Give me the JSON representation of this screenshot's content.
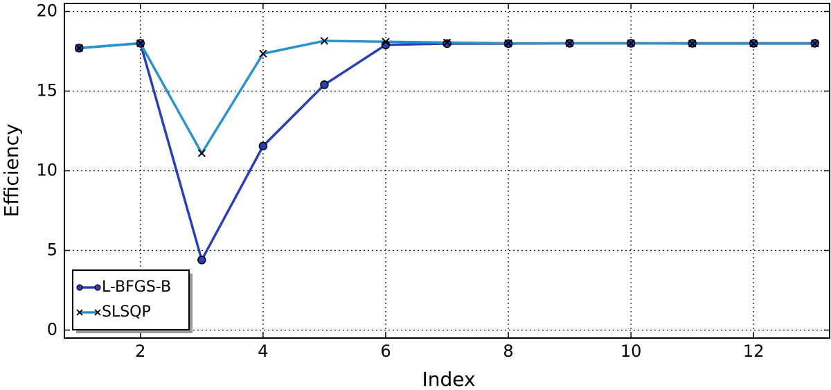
{
  "chart_data": {
    "type": "line",
    "xlabel": "Index",
    "ylabel": "Efficiency",
    "x": [
      1,
      2,
      3,
      4,
      5,
      6,
      7,
      8,
      9,
      10,
      11,
      12,
      13
    ],
    "series": [
      {
        "name": "L-BFGS-B",
        "color": "#2a3eb8",
        "marker": "circle",
        "values": [
          17.7,
          18.0,
          4.4,
          11.55,
          15.4,
          17.9,
          17.98,
          17.98,
          18.0,
          18.0,
          18.0,
          18.0,
          18.0
        ]
      },
      {
        "name": "SLSQP",
        "color": "#2b93c8",
        "marker": "x",
        "values": [
          17.7,
          18.0,
          11.1,
          17.35,
          18.15,
          18.1,
          18.05,
          18.0,
          18.0,
          18.0,
          17.98,
          17.98,
          17.98
        ]
      }
    ],
    "xlim": [
      0.76,
      13.24
    ],
    "ylim": [
      -0.5,
      20.5
    ],
    "xticks": [
      2,
      4,
      6,
      8,
      10,
      12
    ],
    "yticks": [
      0,
      5,
      10,
      15,
      20
    ],
    "grid": true,
    "legend": "lower left"
  }
}
